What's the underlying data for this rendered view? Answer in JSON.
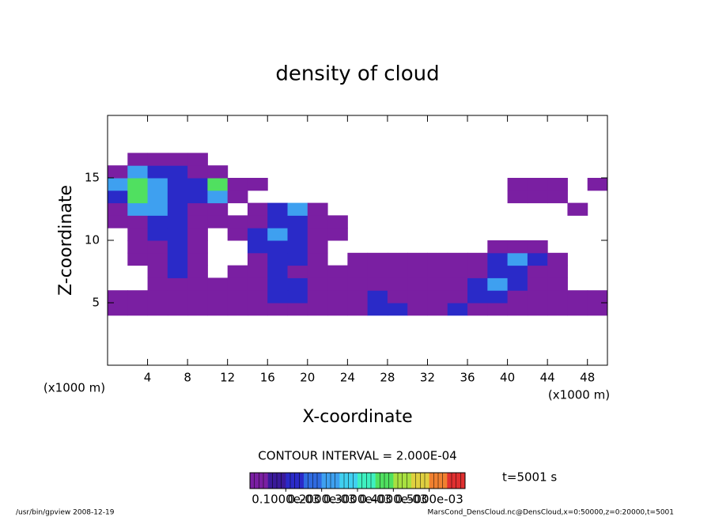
{
  "chart_data": {
    "type": "heatmap",
    "title": "density of cloud",
    "xlabel": "X-coordinate",
    "ylabel": "Z-coordinate",
    "xunit": "(x1000 m)",
    "contour_note": "CONTOUR INTERVAL = 2.000E-04",
    "time_note": "t=5001 s",
    "footer_left": "/usr/bin/gpview  2008-12-19",
    "footer_right": "MarsCond_DensCloud.nc@DensCloud,x=0:50000,z=0:20000,t=5001",
    "xlim": [
      0,
      50
    ],
    "ylim": [
      0,
      20
    ],
    "xticks": [
      4,
      8,
      12,
      16,
      20,
      24,
      28,
      32,
      36,
      40,
      44,
      48
    ],
    "yticks": [
      5,
      10,
      15
    ],
    "xbins": [
      0,
      2,
      4,
      6,
      8,
      10,
      12,
      14,
      16,
      18,
      20,
      22,
      24,
      26,
      28,
      30,
      32,
      34,
      36,
      38,
      40,
      42,
      44,
      46,
      48,
      50
    ],
    "zbins": [
      4,
      5,
      6,
      7,
      8,
      9,
      10,
      11,
      12,
      13,
      14,
      15,
      16,
      17
    ],
    "values": [
      [
        4e-05,
        4e-05,
        4e-05,
        4e-05,
        4e-05,
        4e-05,
        4e-05,
        4e-05,
        4e-05,
        4e-05,
        4e-05,
        4e-05,
        4e-05,
        0.00012,
        0.00012,
        4e-05,
        4e-05,
        0.00012,
        4e-05,
        4e-05,
        4e-05,
        4e-05,
        4e-05,
        4e-05,
        4e-05
      ],
      [
        4e-05,
        4e-05,
        4e-05,
        4e-05,
        4e-05,
        4e-05,
        4e-05,
        4e-05,
        0.00012,
        0.00012,
        4e-05,
        4e-05,
        4e-05,
        0.00012,
        4e-05,
        4e-05,
        4e-05,
        4e-05,
        0.00012,
        0.00012,
        4e-05,
        4e-05,
        4e-05,
        4e-05,
        4e-05
      ],
      [
        null,
        null,
        4e-05,
        4e-05,
        4e-05,
        4e-05,
        4e-05,
        4e-05,
        0.00012,
        0.00012,
        4e-05,
        4e-05,
        4e-05,
        4e-05,
        4e-05,
        4e-05,
        4e-05,
        4e-05,
        0.00012,
        0.0002,
        0.00012,
        4e-05,
        4e-05,
        null,
        null
      ],
      [
        null,
        null,
        4e-05,
        0.00012,
        4e-05,
        null,
        4e-05,
        4e-05,
        0.00012,
        4e-05,
        4e-05,
        4e-05,
        4e-05,
        4e-05,
        4e-05,
        4e-05,
        4e-05,
        4e-05,
        4e-05,
        0.00012,
        0.00012,
        4e-05,
        4e-05,
        null,
        null
      ],
      [
        null,
        4e-05,
        4e-05,
        0.00012,
        4e-05,
        null,
        null,
        4e-05,
        0.00012,
        0.00012,
        4e-05,
        null,
        4e-05,
        4e-05,
        4e-05,
        4e-05,
        4e-05,
        4e-05,
        4e-05,
        0.00012,
        0.0002,
        0.00012,
        4e-05,
        null,
        null
      ],
      [
        null,
        4e-05,
        4e-05,
        0.00012,
        4e-05,
        null,
        null,
        0.00012,
        0.00012,
        0.00012,
        4e-05,
        null,
        null,
        null,
        null,
        null,
        null,
        null,
        null,
        4e-05,
        4e-05,
        4e-05,
        null,
        null,
        null
      ],
      [
        null,
        4e-05,
        0.00012,
        0.00012,
        4e-05,
        null,
        4e-05,
        0.00012,
        0.0002,
        0.00012,
        4e-05,
        4e-05,
        null,
        null,
        null,
        null,
        null,
        null,
        null,
        null,
        null,
        null,
        null,
        null,
        null
      ],
      [
        4e-05,
        4e-05,
        0.00012,
        0.00012,
        4e-05,
        4e-05,
        4e-05,
        4e-05,
        0.00012,
        0.00012,
        4e-05,
        4e-05,
        null,
        null,
        null,
        null,
        null,
        null,
        null,
        null,
        null,
        null,
        null,
        null,
        null
      ],
      [
        4e-05,
        0.0002,
        0.0002,
        0.00012,
        4e-05,
        4e-05,
        null,
        4e-05,
        0.00012,
        0.0002,
        4e-05,
        null,
        null,
        null,
        null,
        null,
        null,
        null,
        null,
        null,
        null,
        null,
        null,
        4e-05,
        null
      ],
      [
        0.00012,
        0.00035,
        0.0002,
        0.00012,
        0.00012,
        0.0002,
        4e-05,
        null,
        null,
        null,
        null,
        null,
        null,
        null,
        null,
        null,
        null,
        null,
        null,
        null,
        4e-05,
        4e-05,
        4e-05,
        null,
        null
      ],
      [
        0.0002,
        0.00035,
        0.0002,
        0.00012,
        0.00012,
        0.00035,
        4e-05,
        4e-05,
        null,
        null,
        null,
        null,
        null,
        null,
        null,
        null,
        null,
        null,
        null,
        null,
        4e-05,
        4e-05,
        4e-05,
        null,
        4e-05
      ],
      [
        4e-05,
        0.0002,
        0.00012,
        0.00012,
        4e-05,
        4e-05,
        null,
        null,
        null,
        null,
        null,
        null,
        null,
        null,
        null,
        null,
        null,
        null,
        null,
        null,
        null,
        null,
        null,
        null,
        null
      ],
      [
        null,
        4e-05,
        4e-05,
        4e-05,
        4e-05,
        null,
        null,
        null,
        null,
        null,
        null,
        null,
        null,
        null,
        null,
        null,
        null,
        null,
        null,
        null,
        null,
        null,
        null,
        null,
        null
      ]
    ],
    "clim": [
      0,
      0.0006
    ],
    "colors": [
      "#7a1fa2",
      "#3a1a9a",
      "#2a2ac8",
      "#2f6ae0",
      "#3ea0f0",
      "#40d0f0",
      "#3ef0c0",
      "#50e060",
      "#a8e040",
      "#e0d040",
      "#f08030",
      "#e03030"
    ],
    "cbticks": [
      {
        "value": 0.0001,
        "label": "0.1000e-03"
      },
      {
        "value": 0.0002,
        "label": "0.2000e-03"
      },
      {
        "value": 0.0003,
        "label": "0.3000e-03"
      },
      {
        "value": 0.0004,
        "label": "0.4000e-03"
      },
      {
        "value": 0.0005,
        "label": "0.5000e-03"
      }
    ]
  }
}
